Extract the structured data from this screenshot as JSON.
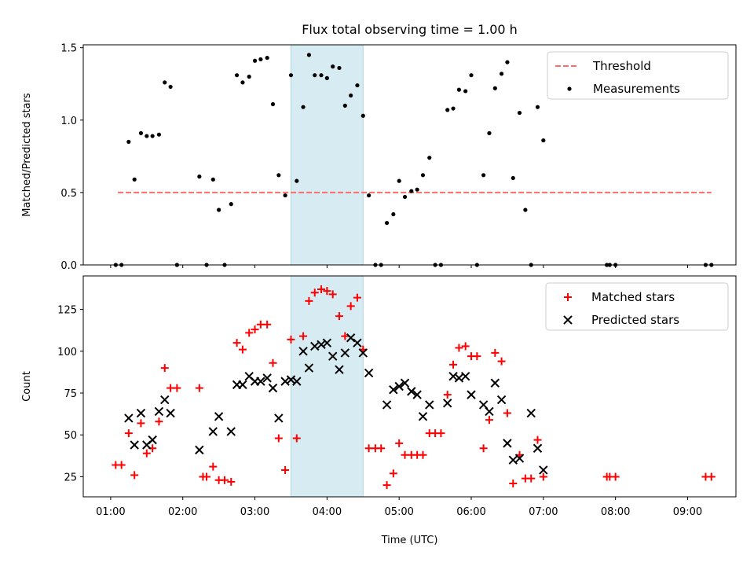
{
  "chart_data": [
    {
      "type": "scatter",
      "title": "Flux total observing time = 1.00 h",
      "xlabel": "",
      "ylabel": "Matched/Predicted stars",
      "xlim": [
        0.62,
        9.67
      ],
      "ylim": [
        0,
        1.52
      ],
      "yticks": [
        0,
        0.5,
        1.0,
        1.5
      ],
      "ytick_labels": [
        "0.0",
        "0.5",
        "1.0",
        "1.5"
      ],
      "shaded_region": {
        "x": [
          3.5,
          4.5
        ],
        "color": "#add8e6"
      },
      "legend": [
        "Threshold",
        "Measurements"
      ],
      "legend_position": "upper right",
      "series": [
        {
          "name": "Threshold",
          "kind": "dashed-line",
          "color": "#ff6b6b",
          "x": [
            1.1,
            9.33
          ],
          "y": [
            0.5,
            0.5
          ]
        },
        {
          "name": "Measurements",
          "kind": "dots",
          "color": "#000000",
          "x": [
            1.07,
            1.15,
            1.25,
            1.33,
            1.42,
            1.5,
            1.58,
            1.67,
            1.75,
            1.83,
            1.92,
            2.23,
            2.33,
            2.42,
            2.5,
            2.58,
            2.67,
            2.75,
            2.83,
            2.92,
            3.0,
            3.08,
            3.17,
            3.25,
            3.33,
            3.42,
            3.5,
            3.58,
            3.67,
            3.75,
            3.83,
            3.92,
            4.0,
            4.08,
            4.17,
            4.25,
            4.33,
            4.42,
            4.5,
            4.58,
            4.67,
            4.75,
            4.83,
            4.92,
            5.0,
            5.08,
            5.17,
            5.25,
            5.33,
            5.42,
            5.5,
            5.58,
            5.67,
            5.75,
            5.83,
            5.92,
            6.0,
            6.08,
            6.17,
            6.25,
            6.33,
            6.42,
            6.5,
            6.58,
            6.67,
            6.75,
            6.83,
            6.92,
            7.0,
            7.88,
            7.92,
            8.0,
            9.25,
            9.33
          ],
          "y": [
            0,
            0,
            0.85,
            0.59,
            0.91,
            0.89,
            0.89,
            0.9,
            1.26,
            1.23,
            0,
            0.61,
            0,
            0.59,
            0.38,
            0,
            0.42,
            1.31,
            1.26,
            1.3,
            1.41,
            1.42,
            1.43,
            1.11,
            0.62,
            0.48,
            1.31,
            0.58,
            1.09,
            1.45,
            1.31,
            1.31,
            1.29,
            1.37,
            1.36,
            1.1,
            1.17,
            1.24,
            1.03,
            0.48,
            0,
            0,
            0.29,
            0.35,
            0.58,
            0.47,
            0.51,
            0.52,
            0.62,
            0.74,
            0,
            0,
            1.07,
            1.08,
            1.21,
            1.2,
            1.31,
            0,
            0.62,
            0.91,
            1.22,
            1.32,
            1.4,
            0.6,
            1.05,
            0.38,
            0,
            1.09,
            0.86,
            0,
            0,
            0,
            0,
            0
          ]
        }
      ]
    },
    {
      "type": "scatter",
      "title": "",
      "xlabel": "Time (UTC)",
      "ylabel": "Count",
      "xlim": [
        0.62,
        9.67
      ],
      "ylim": [
        13,
        145
      ],
      "yticks": [
        25,
        50,
        75,
        100,
        125
      ],
      "ytick_labels": [
        "25",
        "50",
        "75",
        "100",
        "125"
      ],
      "xticks": [
        1,
        2,
        3,
        4,
        5,
        6,
        7,
        8,
        9
      ],
      "xtick_labels": [
        "01:00",
        "02:00",
        "03:00",
        "04:00",
        "05:00",
        "06:00",
        "07:00",
        "08:00",
        "09:00"
      ],
      "shaded_region": {
        "x": [
          3.5,
          4.5
        ],
        "color": "#add8e6"
      },
      "legend": [
        "Matched stars",
        "Predicted stars"
      ],
      "legend_position": "upper right",
      "series": [
        {
          "name": "Matched stars",
          "kind": "plus",
          "color": "#ff0000",
          "x": [
            1.07,
            1.15,
            1.25,
            1.33,
            1.42,
            1.5,
            1.58,
            1.67,
            1.75,
            1.83,
            1.92,
            2.23,
            2.28,
            2.33,
            2.42,
            2.5,
            2.58,
            2.67,
            2.75,
            2.83,
            2.92,
            3.0,
            3.08,
            3.17,
            3.25,
            3.33,
            3.42,
            3.5,
            3.58,
            3.67,
            3.75,
            3.83,
            3.92,
            4.0,
            4.08,
            4.17,
            4.25,
            4.33,
            4.42,
            4.5,
            4.58,
            4.67,
            4.75,
            4.83,
            4.92,
            5.0,
            5.08,
            5.17,
            5.25,
            5.33,
            5.42,
            5.5,
            5.58,
            5.67,
            5.75,
            5.83,
            5.92,
            6.0,
            6.08,
            6.17,
            6.25,
            6.33,
            6.42,
            6.5,
            6.58,
            6.67,
            6.75,
            6.83,
            6.92,
            7.0,
            7.88,
            7.92,
            8.0,
            9.25,
            9.33
          ],
          "y": [
            32,
            32,
            51,
            26,
            57,
            39,
            42,
            58,
            90,
            78,
            78,
            78,
            25,
            25,
            31,
            23,
            23,
            22,
            105,
            101,
            111,
            113,
            116,
            116,
            93,
            48,
            29,
            107,
            48,
            109,
            130,
            135,
            137,
            136,
            134,
            121,
            109,
            127,
            132,
            101,
            42,
            42,
            42,
            20,
            27,
            45,
            38,
            38,
            38,
            38,
            51,
            51,
            51,
            74,
            92,
            102,
            103,
            97,
            97,
            42,
            59,
            99,
            94,
            63,
            21,
            38,
            24,
            24,
            47,
            25,
            25,
            25,
            25,
            25,
            25
          ]
        },
        {
          "name": "Predicted stars",
          "kind": "x",
          "color": "#000000",
          "x": [
            1.25,
            1.33,
            1.42,
            1.5,
            1.58,
            1.67,
            1.75,
            1.83,
            2.23,
            2.42,
            2.5,
            2.67,
            2.75,
            2.83,
            2.92,
            3.0,
            3.08,
            3.17,
            3.25,
            3.33,
            3.42,
            3.5,
            3.58,
            3.67,
            3.75,
            3.83,
            3.92,
            4.0,
            4.08,
            4.17,
            4.25,
            4.33,
            4.42,
            4.5,
            4.58,
            4.83,
            4.92,
            5.0,
            5.08,
            5.17,
            5.25,
            5.33,
            5.42,
            5.67,
            5.75,
            5.83,
            5.92,
            6.0,
            6.17,
            6.25,
            6.33,
            6.42,
            6.5,
            6.58,
            6.67,
            6.83,
            6.92,
            7.0
          ],
          "y": [
            60,
            44,
            63,
            44,
            47,
            64,
            71,
            63,
            41,
            52,
            61,
            52,
            80,
            80,
            85,
            82,
            82,
            84,
            78,
            60,
            82,
            83,
            82,
            100,
            90,
            103,
            104,
            105,
            97,
            89,
            99,
            108,
            105,
            99,
            87,
            68,
            77,
            79,
            81,
            76,
            74,
            61,
            68,
            69,
            85,
            84,
            85,
            74,
            68,
            64,
            81,
            71,
            45,
            35,
            36,
            63,
            42,
            29
          ]
        }
      ]
    }
  ]
}
